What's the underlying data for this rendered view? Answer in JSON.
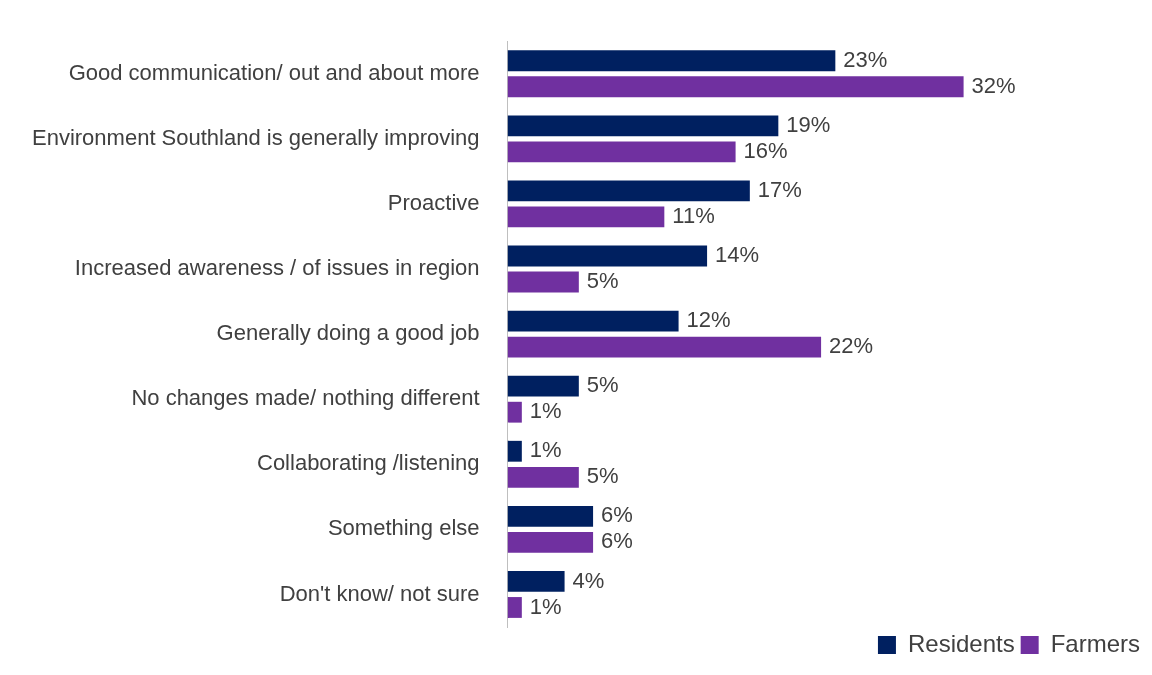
{
  "chart_data": {
    "type": "bar",
    "orientation": "horizontal",
    "legend": "bottom right",
    "categories": [
      "Good communication/ out and about more",
      "Environment Southland is generally improving",
      "Proactive",
      "Increased awareness / of issues in region",
      "Generally doing a good job",
      "No changes made/ nothing different",
      "Collaborating /listening",
      "Something else",
      "Don't know/ not sure"
    ],
    "series": [
      {
        "name": "Residents",
        "color": "#002060",
        "values": [
          23,
          19,
          17,
          14,
          12,
          5,
          1,
          6,
          4
        ],
        "value_labels": [
          "23%",
          "19%",
          "17%",
          "14%",
          "12%",
          "5%",
          "1%",
          "6%",
          "4%"
        ]
      },
      {
        "name": "Farmers",
        "color": "#7030a0",
        "values": [
          32,
          16,
          11,
          5,
          22,
          1,
          5,
          6,
          1
        ],
        "value_labels": [
          "32%",
          "16%",
          "11%",
          "5%",
          "22%",
          "1%",
          "5%",
          "6%",
          "1%"
        ]
      }
    ]
  }
}
